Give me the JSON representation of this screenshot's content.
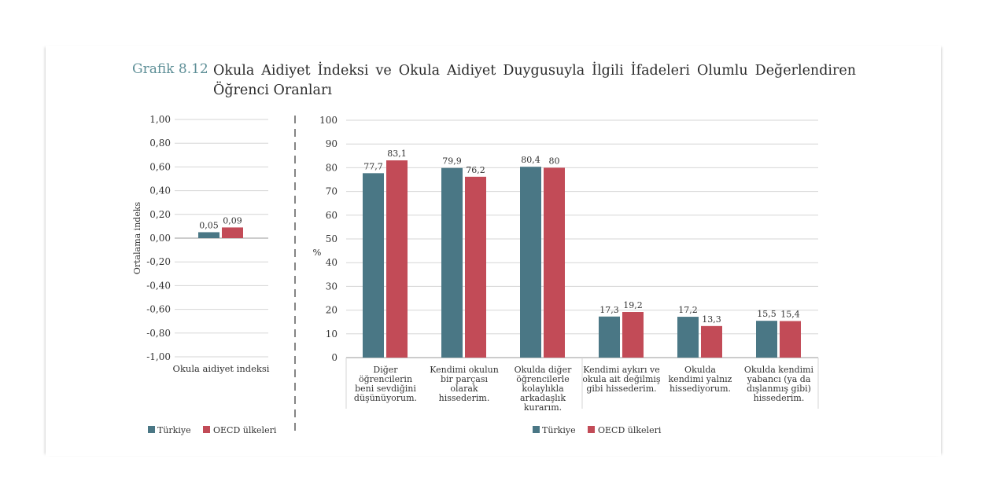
{
  "figure": {
    "number": "Grafik 8.12",
    "title": "Okula Aidiyet İndeksi ve Okula Aidiyet Duygusuyla İlgili İfadeleri Olumlu Değerlendiren Öğrenci Oranları"
  },
  "colors": {
    "turkiye": "#4a7785",
    "oecd": "#c24b57",
    "grid": "#d6d6d6",
    "axis": "#9a9a9a",
    "divider": "#333333"
  },
  "chart_data": [
    {
      "type": "bar",
      "title": "",
      "ylabel": "Ortalama indeks",
      "xlabel": "",
      "ylim": [
        -1.0,
        1.0
      ],
      "yticks": [
        "1,00",
        "0,80",
        "0,60",
        "0,40",
        "0,20",
        "0,00",
        "-0,20",
        "-0,40",
        "-0,60",
        "-0,80",
        "-1,00"
      ],
      "ytick_values": [
        1.0,
        0.8,
        0.6,
        0.4,
        0.2,
        0.0,
        -0.2,
        -0.4,
        -0.6,
        -0.8,
        -1.0
      ],
      "categories": [
        "Okula aidiyet indeksi"
      ],
      "series": [
        {
          "name": "Türkiye",
          "values": [
            0.05
          ],
          "labels": [
            "0,05"
          ]
        },
        {
          "name": "OECD ülkeleri",
          "values": [
            0.09
          ],
          "labels": [
            "0,09"
          ]
        }
      ],
      "grid": true,
      "legend": "bottom-left"
    },
    {
      "type": "bar",
      "title": "",
      "ylabel": "%",
      "xlabel": "",
      "ylim": [
        0,
        100
      ],
      "yticks": [
        "100",
        "90",
        "80",
        "70",
        "60",
        "50",
        "40",
        "30",
        "20",
        "10",
        "0"
      ],
      "ytick_values": [
        100,
        90,
        80,
        70,
        60,
        50,
        40,
        30,
        20,
        10,
        0
      ],
      "categories": [
        [
          "Diğer",
          "öğrencilerin",
          "beni sevdiğini",
          "düşünüyorum."
        ],
        [
          "Kendimi okulun",
          "bir parçası",
          "olarak",
          "hissederim."
        ],
        [
          "Okulda diğer",
          "öğrencilerle",
          "kolaylıkla",
          "arkadaşlık",
          "kurarım."
        ],
        [
          "Kendimi aykırı ve",
          "okula ait değilmiş",
          "gibi hissederim."
        ],
        [
          "Okulda",
          "kendimi yalnız",
          "hissediyorum."
        ],
        [
          "Okulda kendimi",
          "yabancı (ya da",
          "dışlanmış gibi)",
          "hissederim."
        ]
      ],
      "series": [
        {
          "name": "Türkiye",
          "values": [
            77.7,
            79.9,
            80.4,
            17.3,
            17.2,
            15.5
          ],
          "labels": [
            "77,7",
            "79,9",
            "80,4",
            "17,3",
            "17,2",
            "15,5"
          ]
        },
        {
          "name": "OECD ülkeleri",
          "values": [
            83.1,
            76.2,
            80,
            19.2,
            13.3,
            15.4
          ],
          "labels": [
            "83,1",
            "76,2",
            "80",
            "19,2",
            "13,3",
            "15,4"
          ]
        }
      ],
      "grid": true,
      "legend": "bottom-center"
    }
  ]
}
